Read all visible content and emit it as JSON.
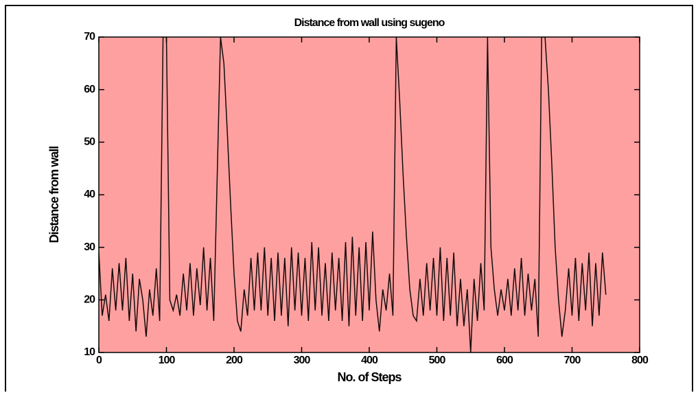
{
  "chart_data": {
    "type": "line",
    "title": "Distance from wall using sugeno",
    "xlabel": "No. of Steps",
    "ylabel": "Distance from wall",
    "xlim": [
      0,
      800
    ],
    "xticks": [
      0,
      100,
      200,
      300,
      400,
      500,
      600,
      700,
      800
    ],
    "ylim": [
      10,
      70
    ],
    "yticks": [
      10,
      20,
      30,
      40,
      50,
      60,
      70
    ],
    "plot_background": "#ffa0a0",
    "series": [
      {
        "color": "#140a0a",
        "x": [
          0,
          5,
          10,
          15,
          20,
          25,
          30,
          35,
          40,
          45,
          50,
          55,
          60,
          65,
          70,
          75,
          80,
          85,
          90,
          95,
          100,
          105,
          110,
          115,
          120,
          125,
          130,
          135,
          140,
          145,
          150,
          155,
          160,
          165,
          170,
          175,
          180,
          185,
          190,
          195,
          200,
          205,
          210,
          215,
          220,
          225,
          230,
          235,
          240,
          245,
          250,
          255,
          260,
          265,
          270,
          275,
          280,
          285,
          290,
          295,
          300,
          305,
          310,
          315,
          320,
          325,
          330,
          335,
          340,
          345,
          350,
          355,
          360,
          365,
          370,
          375,
          380,
          385,
          390,
          395,
          400,
          405,
          410,
          415,
          420,
          425,
          430,
          435,
          440,
          445,
          450,
          455,
          460,
          465,
          470,
          475,
          480,
          485,
          490,
          495,
          500,
          505,
          510,
          515,
          520,
          525,
          530,
          535,
          540,
          545,
          550,
          555,
          560,
          565,
          570,
          575,
          580,
          585,
          590,
          595,
          600,
          605,
          610,
          615,
          620,
          625,
          630,
          635,
          640,
          645,
          650,
          655,
          660,
          665,
          670,
          675,
          680,
          685,
          690,
          695,
          700,
          705,
          710,
          715,
          720,
          725,
          730,
          735,
          740,
          745,
          750
        ],
        "values": [
          29,
          17,
          21,
          16,
          26,
          18,
          27,
          18,
          28,
          16,
          25,
          14,
          24,
          20,
          13,
          22,
          17,
          26,
          16,
          70,
          70,
          20,
          18,
          21,
          17,
          25,
          18,
          27,
          17,
          26,
          19,
          30,
          18,
          28,
          16,
          43,
          70,
          65,
          52,
          38,
          25,
          16,
          14,
          22,
          17,
          28,
          18,
          29,
          18,
          30,
          17,
          28,
          16,
          29,
          17,
          28,
          15,
          30,
          18,
          29,
          17,
          28,
          16,
          31,
          18,
          30,
          17,
          27,
          16,
          29,
          18,
          28,
          16,
          31,
          15,
          32,
          17,
          30,
          16,
          31,
          18,
          33,
          20,
          14,
          22,
          18,
          25,
          17,
          70,
          58,
          44,
          32,
          22,
          17,
          16,
          24,
          17,
          27,
          18,
          28,
          17,
          30,
          16,
          28,
          17,
          29,
          15,
          24,
          15,
          22,
          10,
          24,
          16,
          27,
          18,
          70,
          30,
          22,
          17,
          22,
          18,
          24,
          17,
          26,
          18,
          28,
          17,
          25,
          18,
          24,
          13,
          70,
          70,
          60,
          46,
          30,
          20,
          13,
          18,
          26,
          17,
          28,
          16,
          27,
          18,
          29,
          15,
          27,
          17,
          29,
          21
        ]
      }
    ]
  }
}
